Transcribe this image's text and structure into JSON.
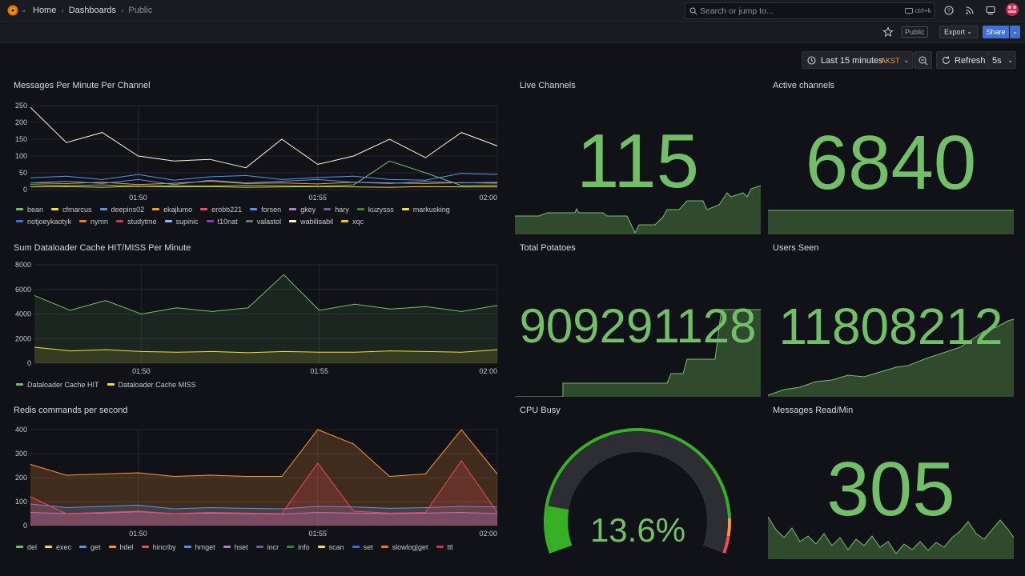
{
  "breadcrumb": {
    "home": "Home",
    "dashboards": "Dashboards",
    "current": "Public"
  },
  "search": {
    "placeholder": "Search or jump to...",
    "shortcut": "ctrl+k"
  },
  "toolbar": {
    "public_tag": "Public",
    "export_label": "Export",
    "share_label": "Share"
  },
  "time_picker": {
    "range_label": "Last 15 minutes",
    "timezone": "AKST",
    "refresh_label": "Refresh",
    "interval": "5s"
  },
  "colors": {
    "green": "#73bf69",
    "background": "#111217",
    "panel_border": "#24262d",
    "accent_blue": "#3d71d9"
  },
  "panels": {
    "messages_per_minute": {
      "title": "Messages Per Minute Per Channel",
      "legend": [
        "bean",
        "cfmarcus",
        "deepins02",
        "ekajlumo",
        "erobb221",
        "forsen",
        "gkey",
        "hary",
        "kuzysss",
        "markusking",
        "notjoeykaotyk",
        "nymn",
        "studytme",
        "supinic",
        "t10nat",
        "valastol",
        "wabilisabil",
        "xqc"
      ],
      "legend_colors": [
        "#73bf69",
        "#fade2a",
        "#5794f2",
        "#ff9830",
        "#f2495c",
        "#5794f2",
        "#b877d9",
        "#705da0",
        "#37872d",
        "#fade2a",
        "#3274d9",
        "#ff780a",
        "#e02f44",
        "#8ab8ff",
        "#8f3bb8",
        "#6e7079",
        "#fff6cc",
        "#f2cc0c"
      ]
    },
    "dataloader_cache": {
      "title": "Sum Dataloader Cache HIT/MISS Per Minute",
      "legend": [
        "Dataloader Cache HIT",
        "Dataloader Cache MISS"
      ],
      "legend_colors": [
        "#73bf69",
        "#fade2a"
      ]
    },
    "redis_commands": {
      "title": "Redis commands per second",
      "legend": [
        "del",
        "exec",
        "get",
        "hdel",
        "hincrby",
        "hmget",
        "hset",
        "incr",
        "info",
        "scan",
        "set",
        "slowlog|get",
        "ttl"
      ],
      "legend_colors": [
        "#73bf69",
        "#fade2a",
        "#5794f2",
        "#ff9830",
        "#f2495c",
        "#5794f2",
        "#b877d9",
        "#705da0",
        "#37872d",
        "#fade2a",
        "#3274d9",
        "#ff780a",
        "#e02f44"
      ]
    },
    "live_channels": {
      "title": "Live Channels",
      "value": "115"
    },
    "active_channels": {
      "title": "Active channels",
      "value": "6840"
    },
    "total_potatoes": {
      "title": "Total Potatoes",
      "value": "909291128"
    },
    "users_seen": {
      "title": "Users Seen",
      "value": "11808212"
    },
    "cpu_busy": {
      "title": "CPU Busy",
      "value": "13.6%",
      "percent": 13.6
    },
    "messages_read": {
      "title": "Messages Read/Min",
      "value": "305"
    }
  },
  "chart_data": [
    {
      "type": "line",
      "title": "Messages Per Minute Per Channel",
      "x": [
        "01:47",
        "01:48",
        "01:49",
        "01:50",
        "01:51",
        "01:52",
        "01:53",
        "01:54",
        "01:55",
        "01:56",
        "01:57",
        "01:58",
        "01:59",
        "02:00"
      ],
      "x_ticks": [
        "01:50",
        "01:55",
        "02:00"
      ],
      "y_ticks": [
        0,
        50,
        100,
        150,
        200,
        250
      ],
      "ylim": [
        0,
        250
      ],
      "series": [
        {
          "name": "bean",
          "values": [
            15,
            12,
            14,
            10,
            12,
            11,
            13,
            12,
            10,
            14,
            85,
            50,
            12,
            13
          ]
        },
        {
          "name": "cfmarcus",
          "values": [
            8,
            9,
            7,
            10,
            8,
            9,
            7,
            8,
            9,
            8,
            7,
            9,
            8,
            8
          ]
        },
        {
          "name": "deepins02",
          "values": [
            35,
            40,
            30,
            45,
            28,
            38,
            42,
            30,
            36,
            40,
            30,
            28,
            48,
            45
          ]
        },
        {
          "name": "ekajlumo",
          "values": [
            20,
            18,
            22,
            15,
            19,
            25,
            18,
            20,
            17,
            22,
            20,
            18,
            21,
            19
          ]
        },
        {
          "name": "forsen",
          "values": [
            20,
            25,
            18,
            30,
            15,
            28,
            20,
            25,
            30,
            22,
            18,
            24,
            20,
            22
          ]
        },
        {
          "name": "xqc",
          "values": [
            245,
            140,
            170,
            100,
            85,
            90,
            65,
            150,
            75,
            100,
            150,
            95,
            170,
            130
          ]
        }
      ],
      "grid": true
    },
    {
      "type": "area",
      "title": "Sum Dataloader Cache HIT/MISS Per Minute",
      "x": [
        "01:47",
        "01:48",
        "01:49",
        "01:50",
        "01:51",
        "01:52",
        "01:53",
        "01:54",
        "01:55",
        "01:56",
        "01:57",
        "01:58",
        "01:59",
        "02:00"
      ],
      "x_ticks": [
        "01:50",
        "01:55",
        "02:00"
      ],
      "y_ticks": [
        0,
        2000,
        4000,
        6000,
        8000
      ],
      "ylim": [
        0,
        8000
      ],
      "series": [
        {
          "name": "Dataloader Cache HIT",
          "values": [
            5500,
            4300,
            5100,
            4000,
            4500,
            4200,
            4500,
            7200,
            4300,
            4800,
            4400,
            4600,
            4200,
            4700
          ]
        },
        {
          "name": "Dataloader Cache MISS",
          "values": [
            1300,
            1000,
            1100,
            950,
            900,
            950,
            850,
            950,
            900,
            900,
            1000,
            950,
            900,
            1100
          ]
        }
      ],
      "grid": true
    },
    {
      "type": "area",
      "title": "Redis commands per second",
      "x": [
        "01:47",
        "01:48",
        "01:49",
        "01:50",
        "01:51",
        "01:52",
        "01:53",
        "01:54",
        "01:55",
        "01:56",
        "01:57",
        "01:58",
        "01:59",
        "02:00"
      ],
      "x_ticks": [
        "01:50",
        "01:55",
        "02:00"
      ],
      "y_ticks": [
        0,
        100,
        200,
        300,
        400
      ],
      "ylim": [
        0,
        400
      ],
      "series": [
        {
          "name": "del",
          "values": [
            255,
            210,
            215,
            220,
            205,
            210,
            205,
            205,
            400,
            340,
            205,
            215,
            400,
            215
          ]
        },
        {
          "name": "get",
          "values": [
            90,
            75,
            80,
            85,
            70,
            75,
            72,
            70,
            80,
            78,
            72,
            75,
            80,
            78
          ]
        },
        {
          "name": "hdel",
          "values": [
            55,
            50,
            52,
            58,
            50,
            52,
            50,
            48,
            55,
            52,
            50,
            52,
            55,
            50
          ]
        },
        {
          "name": "hincrby",
          "values": [
            120,
            50,
            55,
            60,
            50,
            55,
            52,
            50,
            260,
            60,
            52,
            55,
            270,
            55
          ]
        }
      ],
      "grid": true
    }
  ]
}
